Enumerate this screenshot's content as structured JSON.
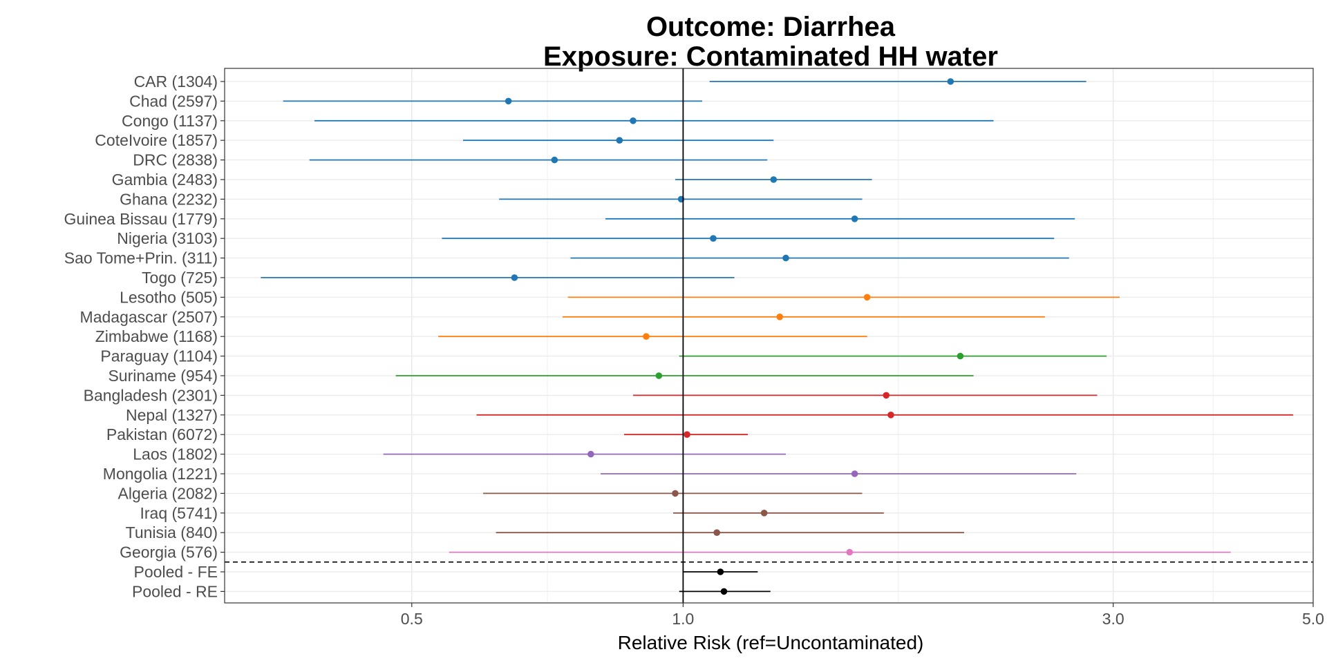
{
  "chart_data": {
    "type": "forest",
    "title": "Outcome: Diarrhea",
    "subtitle": "Exposure: Contaminated HH water",
    "xlabel": "Relative Risk (ref=Uncontaminated)",
    "x_scale": "log",
    "xlim": [
      0.31,
      5.0
    ],
    "x_ticks": [
      {
        "value": 0.5,
        "label": "0.5"
      },
      {
        "value": 1.0,
        "label": "1.0"
      },
      {
        "value": 3.0,
        "label": "3.0"
      },
      {
        "value": 5.0,
        "label": "5.0"
      }
    ],
    "reference_line": 1.0,
    "grid": true,
    "series": [
      {
        "label": "CAR (1304)",
        "estimate": 1.98,
        "lower": 1.07,
        "upper": 2.8,
        "color": "#1f77b4"
      },
      {
        "label": "Chad (2597)",
        "estimate": 0.64,
        "lower": 0.36,
        "upper": 1.05,
        "color": "#1f77b4"
      },
      {
        "label": "Congo (1137)",
        "estimate": 0.88,
        "lower": 0.39,
        "upper": 2.21,
        "color": "#1f77b4"
      },
      {
        "label": "CoteIvoire (1857)",
        "estimate": 0.85,
        "lower": 0.57,
        "upper": 1.26,
        "color": "#1f77b4"
      },
      {
        "label": "DRC (2838)",
        "estimate": 0.72,
        "lower": 0.385,
        "upper": 1.24,
        "color": "#1f77b4"
      },
      {
        "label": "Gambia (2483)",
        "estimate": 1.26,
        "lower": 0.98,
        "upper": 1.62,
        "color": "#1f77b4"
      },
      {
        "label": "Ghana (2232)",
        "estimate": 0.995,
        "lower": 0.625,
        "upper": 1.58,
        "color": "#1f77b4"
      },
      {
        "label": "Guinea Bissau (1779)",
        "estimate": 1.55,
        "lower": 0.82,
        "upper": 2.72,
        "color": "#1f77b4"
      },
      {
        "label": "Nigeria (3103)",
        "estimate": 1.08,
        "lower": 0.54,
        "upper": 2.58,
        "color": "#1f77b4"
      },
      {
        "label": "Sao Tome+Prin. (311)",
        "estimate": 1.3,
        "lower": 0.75,
        "upper": 2.68,
        "color": "#1f77b4"
      },
      {
        "label": "Togo (725)",
        "estimate": 0.65,
        "lower": 0.34,
        "upper": 1.14,
        "color": "#1f77b4"
      },
      {
        "label": "Lesotho (505)",
        "estimate": 1.6,
        "lower": 0.745,
        "upper": 3.05,
        "color": "#ff7f0e"
      },
      {
        "label": "Madagascar (2507)",
        "estimate": 1.28,
        "lower": 0.735,
        "upper": 2.52,
        "color": "#ff7f0e"
      },
      {
        "label": "Zimbabwe (1168)",
        "estimate": 0.91,
        "lower": 0.535,
        "upper": 1.6,
        "color": "#ff7f0e"
      },
      {
        "label": "Paraguay (1104)",
        "estimate": 2.03,
        "lower": 0.99,
        "upper": 2.95,
        "color": "#2ca02c"
      },
      {
        "label": "Suriname (954)",
        "estimate": 0.94,
        "lower": 0.48,
        "upper": 2.1,
        "color": "#2ca02c"
      },
      {
        "label": "Bangladesh (2301)",
        "estimate": 1.68,
        "lower": 0.88,
        "upper": 2.88,
        "color": "#d62728"
      },
      {
        "label": "Nepal (1327)",
        "estimate": 1.7,
        "lower": 0.59,
        "upper": 4.75,
        "color": "#d62728"
      },
      {
        "label": "Pakistan (6072)",
        "estimate": 1.01,
        "lower": 0.86,
        "upper": 1.18,
        "color": "#d62728"
      },
      {
        "label": "Laos (1802)",
        "estimate": 0.79,
        "lower": 0.465,
        "upper": 1.3,
        "color": "#9467bd"
      },
      {
        "label": "Mongolia (1221)",
        "estimate": 1.55,
        "lower": 0.81,
        "upper": 2.73,
        "color": "#9467bd"
      },
      {
        "label": "Algeria (2082)",
        "estimate": 0.98,
        "lower": 0.6,
        "upper": 1.58,
        "color": "#8c564b"
      },
      {
        "label": "Iraq (5741)",
        "estimate": 1.23,
        "lower": 0.975,
        "upper": 1.67,
        "color": "#8c564b"
      },
      {
        "label": "Tunisia (840)",
        "estimate": 1.09,
        "lower": 0.62,
        "upper": 2.05,
        "color": "#8c564b"
      },
      {
        "label": "Georgia (576)",
        "estimate": 1.53,
        "lower": 0.55,
        "upper": 4.05,
        "color": "#e377c2"
      },
      {
        "label": "Pooled - FE",
        "estimate": 1.1,
        "lower": 1.0,
        "upper": 1.21,
        "color": "#000000"
      },
      {
        "label": "Pooled - RE",
        "estimate": 1.11,
        "lower": 0.99,
        "upper": 1.25,
        "color": "#000000"
      }
    ],
    "separator_after_index": 24
  }
}
